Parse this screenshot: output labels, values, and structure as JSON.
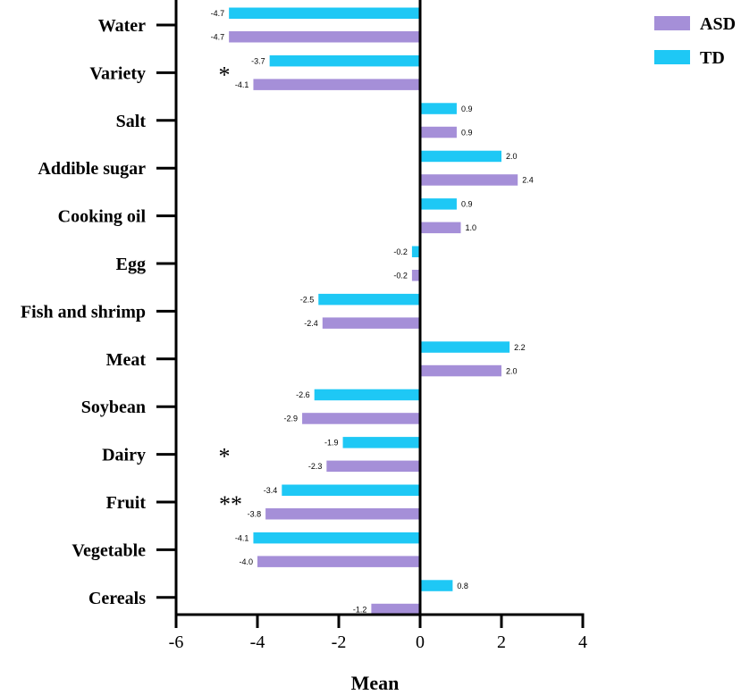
{
  "chart_data": {
    "type": "bar",
    "orientation": "horizontal",
    "title": "",
    "xlabel": "Mean",
    "ylabel": "",
    "xlim": [
      -6,
      4
    ],
    "xticks": [
      "-6",
      "-4",
      "-2",
      "0",
      "2",
      "4"
    ],
    "categories": [
      "Water",
      "Variety",
      "Salt",
      "Addible sugar",
      "Cooking oil",
      "Egg",
      "Fish and shrimp",
      "Meat",
      "Soybean",
      "Dairy",
      "Fruit",
      "Vegetable",
      "Cereals"
    ],
    "series": [
      {
        "name": "TD",
        "color": "#1ec8f5",
        "values": [
          -4.7,
          -3.7,
          0.9,
          2.0,
          0.9,
          -0.2,
          -2.5,
          2.2,
          -2.6,
          -1.9,
          -3.4,
          -4.1,
          0.8
        ],
        "labels": [
          "-4.7",
          "-3.7",
          "0.9",
          "2.0",
          "0.9",
          "-0.2",
          "-2.5",
          "2.2",
          "-2.6",
          "-1.9",
          "-3.4",
          "-4.1",
          "0.8"
        ]
      },
      {
        "name": "ASD",
        "color": "#a58fd8",
        "values": [
          -4.7,
          -4.1,
          0.9,
          2.4,
          1.0,
          -0.2,
          -2.4,
          2.0,
          -2.9,
          -2.3,
          -3.8,
          -4.0,
          -1.2
        ],
        "labels": [
          "-4.7",
          "-4.1",
          "0.9",
          "2.4",
          "1.0",
          "-0.2",
          "-2.4",
          "2.0",
          "-2.9",
          "-2.3",
          "-3.8",
          "-4.0",
          "-1.2"
        ]
      }
    ],
    "legend": {
      "position": "top-right",
      "order": [
        "ASD",
        "TD"
      ]
    },
    "annotations": [
      {
        "category": "Variety",
        "text": "*"
      },
      {
        "category": "Dairy",
        "text": "*"
      },
      {
        "category": "Fruit",
        "text": "**"
      }
    ]
  }
}
